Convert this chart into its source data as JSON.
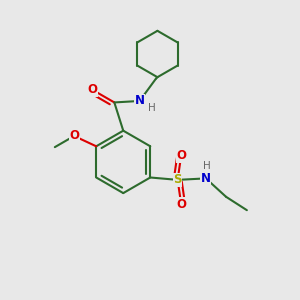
{
  "bg_color": "#e8e8e8",
  "bond_color": "#2d6b2d",
  "bond_width": 1.5,
  "atom_colors": {
    "O": "#dd0000",
    "N": "#0000cc",
    "S": "#aaaa00",
    "C": "#2d6b2d",
    "H": "#666666"
  },
  "font_size": 8.5,
  "small_font": 7.5
}
